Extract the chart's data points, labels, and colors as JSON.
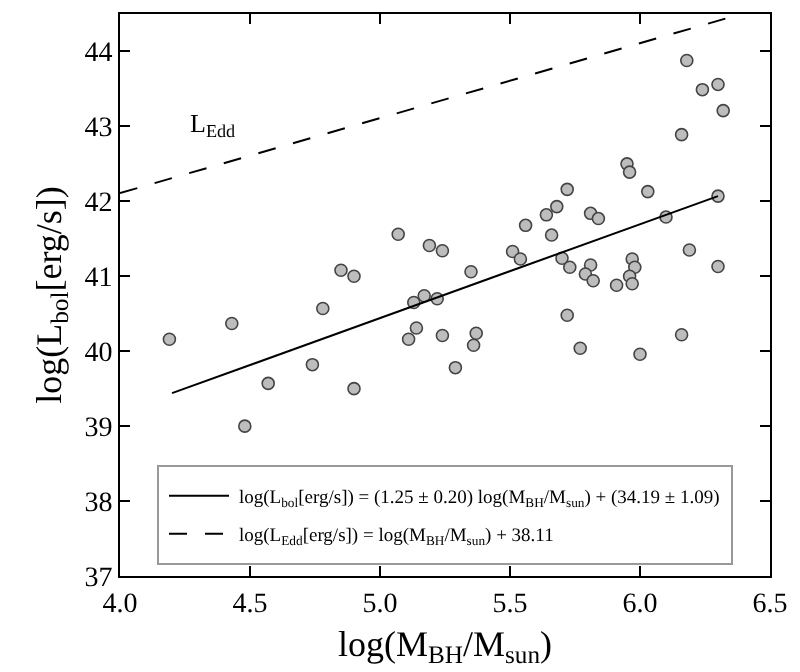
{
  "chart_data": {
    "type": "scatter",
    "xlabel": "log(M$_{BH}$/M$_{sun}$)",
    "ylabel": "log(L$_{bol}$[erg/s])",
    "xlim": [
      4.0,
      6.5
    ],
    "ylim": [
      37,
      44.5
    ],
    "xticks": [
      {
        "value": 4.0,
        "label": "4.0"
      },
      {
        "value": 4.5,
        "label": "4.5"
      },
      {
        "value": 5.0,
        "label": "5.0"
      },
      {
        "value": 5.5,
        "label": "5.5"
      },
      {
        "value": 6.0,
        "label": "6.0"
      },
      {
        "value": 6.5,
        "label": "6.5"
      }
    ],
    "yticks": [
      37,
      38,
      39,
      40,
      41,
      42,
      43,
      44
    ],
    "grid": false,
    "legend": "bottom",
    "marker": "circle",
    "annotations": [
      "L$_{Edd}$"
    ],
    "series": [
      {
        "color": "#bdbdbd",
        "x": [
          5.07,
          5.19,
          5.24,
          4.85,
          4.9,
          4.78,
          4.43,
          4.19,
          5.13,
          5.17,
          5.22,
          5.35,
          5.11,
          5.14,
          5.24,
          4.74,
          4.57,
          4.9,
          4.48,
          5.29,
          6.18,
          6.24,
          6.3,
          6.32,
          6.16,
          5.95,
          5.96,
          6.03,
          5.72,
          5.68,
          5.64,
          5.56,
          5.66,
          5.81,
          5.84,
          6.1,
          6.3,
          5.51,
          5.54,
          5.7,
          5.73,
          5.81,
          5.79,
          5.82,
          5.97,
          5.98,
          5.96,
          5.97,
          5.91,
          6.19,
          6.3,
          5.72,
          5.37,
          6.16,
          5.36,
          5.77,
          6.0
        ],
        "values": [
          41.56,
          41.41,
          41.34,
          41.08,
          41.0,
          40.57,
          40.37,
          40.16,
          40.65,
          40.74,
          40.7,
          41.06,
          40.16,
          40.31,
          40.21,
          39.82,
          39.57,
          39.5,
          39.0,
          39.78,
          43.88,
          43.49,
          43.56,
          43.21,
          42.89,
          42.5,
          42.39,
          42.13,
          42.16,
          41.93,
          41.82,
          41.68,
          41.55,
          41.84,
          41.77,
          41.79,
          42.07,
          41.33,
          41.23,
          41.24,
          41.12,
          41.15,
          41.03,
          40.94,
          41.23,
          41.12,
          41.0,
          40.9,
          40.88,
          41.35,
          41.13,
          40.48,
          40.24,
          40.22,
          40.08,
          40.04,
          39.96
        ]
      },
      {
        "type": "line",
        "name": "log(L$_{bol}$[erg/s]) = (1.25 ± 0.20) log(M$_{BH}$/M$_{sun}$) + (34.19 ± 1.09)",
        "color": "#000000",
        "line_style": "solid",
        "marker": "none",
        "x": [
          4.2,
          6.3
        ],
        "values": [
          39.44,
          42.07
        ]
      },
      {
        "type": "line",
        "name": "log(L$_{Edd}$[erg/s]) = log(M$_{BH}$/M$_{sun}$) + 38.11",
        "color": "#000000",
        "line_style": "dashed",
        "marker": "none",
        "x": [
          4.0,
          6.39
        ],
        "values": [
          42.11,
          44.5
        ]
      }
    ]
  }
}
